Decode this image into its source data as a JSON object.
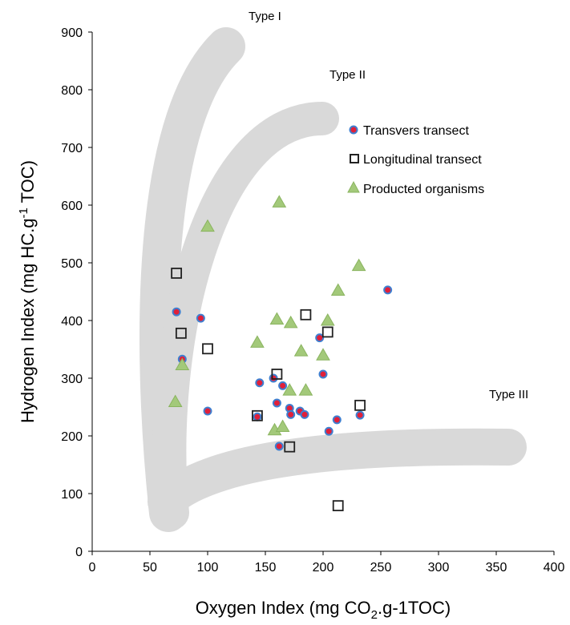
{
  "chart_data": {
    "type": "scatter",
    "xlabel": {
      "main": "Oxygen Index (mg CO",
      "sub": "2",
      "rest": ".g-1TOC)"
    },
    "ylabel": {
      "main": "Hydrogen Index (mg HC.g",
      "sup": "-1",
      "rest": " TOC)"
    },
    "xlim": [
      0,
      400
    ],
    "ylim": [
      0,
      900
    ],
    "xticks": [
      0,
      50,
      100,
      150,
      200,
      250,
      300,
      350,
      400
    ],
    "yticks": [
      0,
      100,
      200,
      300,
      400,
      500,
      600,
      700,
      800,
      900
    ],
    "grid": false,
    "legend_position": "top-right",
    "annotations": [
      {
        "id": "type1",
        "text": "Type I"
      },
      {
        "id": "type2",
        "text": "Type II"
      },
      {
        "id": "type3",
        "text": "Type III"
      }
    ],
    "colors": {
      "circle_fill": "#e0203a",
      "circle_edge": "#3f7fd0",
      "square_edge": "#222222",
      "triangle_fill": "#a3c97a",
      "triangle_edge": "#8ab45f",
      "band": "#d9d9d9"
    },
    "series": [
      {
        "name": "Transvers transect",
        "marker": "circle",
        "points": [
          [
            73,
            415
          ],
          [
            94,
            404
          ],
          [
            78,
            333
          ],
          [
            100,
            243
          ],
          [
            143,
            233
          ],
          [
            145,
            292
          ],
          [
            157,
            300
          ],
          [
            160,
            257
          ],
          [
            165,
            287
          ],
          [
            171,
            248
          ],
          [
            172,
            237
          ],
          [
            180,
            243
          ],
          [
            184,
            237
          ],
          [
            197,
            370
          ],
          [
            200,
            307
          ],
          [
            205,
            208
          ],
          [
            212,
            228
          ],
          [
            232,
            236
          ],
          [
            256,
            453
          ],
          [
            162,
            182
          ]
        ]
      },
      {
        "name": "Longitudinal transect",
        "marker": "square",
        "points": [
          [
            73,
            482
          ],
          [
            77,
            378
          ],
          [
            100,
            351
          ],
          [
            143,
            235
          ],
          [
            160,
            307
          ],
          [
            171,
            181
          ],
          [
            185,
            410
          ],
          [
            204,
            380
          ],
          [
            232,
            253
          ],
          [
            213,
            79
          ]
        ]
      },
      {
        "name": "Producted organisms",
        "marker": "triangle",
        "points": [
          [
            100,
            563
          ],
          [
            162,
            605
          ],
          [
            231,
            495
          ],
          [
            213,
            452
          ],
          [
            143,
            362
          ],
          [
            160,
            402
          ],
          [
            172,
            396
          ],
          [
            204,
            400
          ],
          [
            181,
            347
          ],
          [
            200,
            340
          ],
          [
            78,
            323
          ],
          [
            72,
            259
          ],
          [
            171,
            279
          ],
          [
            185,
            279
          ],
          [
            158,
            210
          ],
          [
            165,
            216
          ]
        ]
      }
    ]
  }
}
